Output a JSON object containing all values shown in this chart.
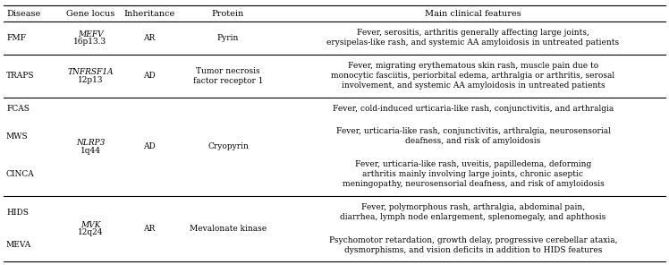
{
  "col_headers": [
    "Disease",
    "Gene locus",
    "Inheritance",
    "Protein",
    "Main clinical features"
  ],
  "background_color": "#ffffff",
  "line_color": "#000000",
  "text_color": "#000000",
  "fontsize_header": 7.0,
  "fontsize_body": 6.5,
  "groups": [
    {
      "diseases": [
        "FMF"
      ],
      "gene_italic": "MEFV",
      "gene_normal": "16p13.3",
      "inh": "AR",
      "prot": "Pyrin",
      "features": [
        "Fever, serositis, arthritis generally affecting large joints,\nerysipelas-like rash, and systemic AA amyloidosis in untreated patients"
      ]
    },
    {
      "diseases": [
        "TRAPS"
      ],
      "gene_italic": "TNFRSF1A",
      "gene_normal": "12p13",
      "inh": "AD",
      "prot": "Tumor necrosis\nfactor receptor 1",
      "features": [
        "Fever, migrating erythematous skin rash, muscle pain due to\nmonocytic fasciitis, periorbital edema, arthralgia or arthritis, serosal\ninvolvement, and systemic AA amyloidosis in untreated patients"
      ]
    },
    {
      "diseases": [
        "FCAS",
        "MWS",
        "CINCA"
      ],
      "gene_italic": "NLRP3",
      "gene_normal": "1q44",
      "inh": "AD",
      "prot": "Cryopyrin",
      "features": [
        "Fever, cold-induced urticaria-like rash, conjunctivitis, and arthralgia",
        "Fever, urticaria-like rash, conjunctivitis, arthralgia, neurosensorial\ndeafness, and risk of amyloidosis",
        "Fever, urticaria-like rash, uveitis, papilledema, deforming\narthritis mainly involving large joints, chronic aseptic\nmeningopathy, neurosensorial deafness, and risk of amyloidosis"
      ]
    },
    {
      "diseases": [
        "HIDS",
        "MEVA"
      ],
      "gene_italic": "MVK",
      "gene_normal": "12q24",
      "inh": "AR",
      "prot": "Mevalonate kinase",
      "features": [
        "Fever, polymorphous rash, arthralgia, abdominal pain,\ndiarrhea, lymph node enlargement, splenomegaly, and aphthosis",
        "Psychomotor retardation, growth delay, progressive cerebellar ataxia,\ndysmorphisms, and vision deficits in addition to HIDS features"
      ]
    }
  ]
}
